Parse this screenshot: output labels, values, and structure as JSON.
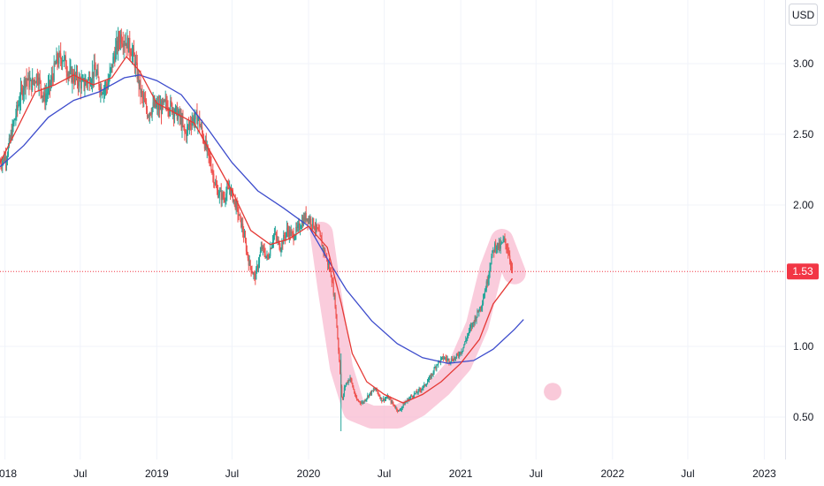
{
  "chart_data": {
    "type": "line",
    "currency": "USD",
    "last_price_label": "1.53",
    "last_price": 1.53,
    "ylim": [
      0.2,
      3.45
    ],
    "y_ticks": [
      {
        "value": 3.0,
        "label": "3.00"
      },
      {
        "value": 2.5,
        "label": "2.50"
      },
      {
        "value": 2.0,
        "label": "2.00"
      },
      {
        "value": 1.0,
        "label": "1.00"
      },
      {
        "value": 0.5,
        "label": "0.50"
      }
    ],
    "xlim": [
      "2017-12-20",
      "2023-02-20"
    ],
    "x_ticks": [
      {
        "date": "2018-01-01",
        "label": "2018"
      },
      {
        "date": "2018-07-01",
        "label": "Jul"
      },
      {
        "date": "2019-01-01",
        "label": "2019"
      },
      {
        "date": "2019-07-01",
        "label": "Jul"
      },
      {
        "date": "2020-01-01",
        "label": "2020"
      },
      {
        "date": "2020-07-01",
        "label": "Jul"
      },
      {
        "date": "2021-01-01",
        "label": "2021"
      },
      {
        "date": "2021-07-01",
        "label": "Jul"
      },
      {
        "date": "2022-01-01",
        "label": "2022"
      },
      {
        "date": "2022-07-01",
        "label": "Jul"
      },
      {
        "date": "2023-01-01",
        "label": "2023"
      }
    ],
    "colors": {
      "up": "#26a69a",
      "down": "#ef5350",
      "fast_ma": "#e53935",
      "slow_ma": "#3d4ccc",
      "highlight": "#f8bbd0",
      "last_price": "#f23645",
      "grid": "#f0f3fa",
      "axis_text": "#131722"
    },
    "price_path": [
      [
        "2017-12-20",
        2.3
      ],
      [
        "2018-01-05",
        2.35
      ],
      [
        "2018-01-20",
        2.55
      ],
      [
        "2018-02-05",
        2.75
      ],
      [
        "2018-02-20",
        2.9
      ],
      [
        "2018-03-05",
        2.85
      ],
      [
        "2018-03-20",
        2.92
      ],
      [
        "2018-04-05",
        2.75
      ],
      [
        "2018-04-20",
        2.85
      ],
      [
        "2018-05-05",
        3.02
      ],
      [
        "2018-05-20",
        3.05
      ],
      [
        "2018-06-05",
        2.92
      ],
      [
        "2018-06-20",
        2.9
      ],
      [
        "2018-07-05",
        2.85
      ],
      [
        "2018-07-20",
        2.88
      ],
      [
        "2018-08-05",
        2.95
      ],
      [
        "2018-08-20",
        2.82
      ],
      [
        "2018-09-05",
        2.85
      ],
      [
        "2018-09-20",
        3.05
      ],
      [
        "2018-10-05",
        3.2
      ],
      [
        "2018-10-20",
        3.15
      ],
      [
        "2018-11-01",
        3.1
      ],
      [
        "2018-11-10",
        3.0
      ],
      [
        "2018-11-25",
        2.78
      ],
      [
        "2018-12-10",
        2.65
      ],
      [
        "2018-12-25",
        2.7
      ],
      [
        "2019-01-10",
        2.68
      ],
      [
        "2019-01-25",
        2.72
      ],
      [
        "2019-02-10",
        2.68
      ],
      [
        "2019-02-25",
        2.62
      ],
      [
        "2019-03-10",
        2.5
      ],
      [
        "2019-03-25",
        2.6
      ],
      [
        "2019-04-10",
        2.62
      ],
      [
        "2019-04-25",
        2.45
      ],
      [
        "2019-05-10",
        2.3
      ],
      [
        "2019-05-25",
        2.1
      ],
      [
        "2019-06-10",
        2.05
      ],
      [
        "2019-06-25",
        2.12
      ],
      [
        "2019-07-10",
        2.0
      ],
      [
        "2019-07-25",
        1.85
      ],
      [
        "2019-08-10",
        1.6
      ],
      [
        "2019-08-25",
        1.48
      ],
      [
        "2019-09-10",
        1.7
      ],
      [
        "2019-09-25",
        1.62
      ],
      [
        "2019-10-10",
        1.8
      ],
      [
        "2019-10-25",
        1.7
      ],
      [
        "2019-11-10",
        1.82
      ],
      [
        "2019-11-25",
        1.78
      ],
      [
        "2019-12-10",
        1.85
      ],
      [
        "2019-12-25",
        1.92
      ],
      [
        "2020-01-10",
        1.88
      ],
      [
        "2020-01-25",
        1.8
      ],
      [
        "2020-02-10",
        1.65
      ],
      [
        "2020-02-25",
        1.5
      ],
      [
        "2020-03-05",
        1.3
      ],
      [
        "2020-03-15",
        0.9
      ],
      [
        "2020-03-22",
        0.6
      ],
      [
        "2020-03-28",
        0.72
      ],
      [
        "2020-04-10",
        0.78
      ],
      [
        "2020-04-25",
        0.62
      ],
      [
        "2020-05-10",
        0.6
      ],
      [
        "2020-05-25",
        0.66
      ],
      [
        "2020-06-10",
        0.7
      ],
      [
        "2020-06-25",
        0.62
      ],
      [
        "2020-07-10",
        0.64
      ],
      [
        "2020-07-25",
        0.58
      ],
      [
        "2020-08-05",
        0.54
      ],
      [
        "2020-08-20",
        0.6
      ],
      [
        "2020-09-05",
        0.65
      ],
      [
        "2020-09-20",
        0.68
      ],
      [
        "2020-10-05",
        0.72
      ],
      [
        "2020-10-20",
        0.78
      ],
      [
        "2020-11-05",
        0.88
      ],
      [
        "2020-11-20",
        0.92
      ],
      [
        "2020-12-05",
        0.9
      ],
      [
        "2020-12-20",
        0.92
      ],
      [
        "2021-01-05",
        0.98
      ],
      [
        "2021-01-20",
        1.1
      ],
      [
        "2021-02-05",
        1.2
      ],
      [
        "2021-02-20",
        1.3
      ],
      [
        "2021-03-05",
        1.45
      ],
      [
        "2021-03-15",
        1.62
      ],
      [
        "2021-03-25",
        1.72
      ],
      [
        "2021-04-05",
        1.7
      ],
      [
        "2021-04-15",
        1.75
      ],
      [
        "2021-04-25",
        1.68
      ],
      [
        "2021-05-05",
        1.53
      ]
    ],
    "fast_ma_path": [
      [
        "2017-12-20",
        2.3
      ],
      [
        "2018-02-01",
        2.55
      ],
      [
        "2018-03-15",
        2.8
      ],
      [
        "2018-05-01",
        2.85
      ],
      [
        "2018-06-15",
        2.92
      ],
      [
        "2018-08-01",
        2.85
      ],
      [
        "2018-09-15",
        2.9
      ],
      [
        "2018-10-20",
        3.05
      ],
      [
        "2018-11-20",
        2.95
      ],
      [
        "2019-01-01",
        2.72
      ],
      [
        "2019-02-15",
        2.65
      ],
      [
        "2019-04-01",
        2.58
      ],
      [
        "2019-05-15",
        2.35
      ],
      [
        "2019-07-01",
        2.1
      ],
      [
        "2019-08-15",
        1.82
      ],
      [
        "2019-10-01",
        1.72
      ],
      [
        "2019-11-15",
        1.76
      ],
      [
        "2020-01-01",
        1.85
      ],
      [
        "2020-02-15",
        1.7
      ],
      [
        "2020-03-20",
        1.3
      ],
      [
        "2020-04-15",
        0.95
      ],
      [
        "2020-05-20",
        0.75
      ],
      [
        "2020-07-01",
        0.66
      ],
      [
        "2020-08-15",
        0.6
      ],
      [
        "2020-10-01",
        0.66
      ],
      [
        "2020-11-15",
        0.75
      ],
      [
        "2021-01-01",
        0.88
      ],
      [
        "2021-02-15",
        1.05
      ],
      [
        "2021-03-20",
        1.3
      ],
      [
        "2021-05-05",
        1.48
      ]
    ],
    "slow_ma_path": [
      [
        "2017-12-20",
        2.27
      ],
      [
        "2018-02-15",
        2.42
      ],
      [
        "2018-04-15",
        2.62
      ],
      [
        "2018-06-15",
        2.74
      ],
      [
        "2018-08-15",
        2.8
      ],
      [
        "2018-10-15",
        2.9
      ],
      [
        "2018-11-20",
        2.92
      ],
      [
        "2019-01-01",
        2.88
      ],
      [
        "2019-03-01",
        2.78
      ],
      [
        "2019-05-01",
        2.55
      ],
      [
        "2019-07-01",
        2.3
      ],
      [
        "2019-09-01",
        2.1
      ],
      [
        "2019-11-01",
        1.98
      ],
      [
        "2020-01-01",
        1.85
      ],
      [
        "2020-02-15",
        1.62
      ],
      [
        "2020-04-01",
        1.4
      ],
      [
        "2020-06-01",
        1.18
      ],
      [
        "2020-08-01",
        1.02
      ],
      [
        "2020-10-01",
        0.92
      ],
      [
        "2020-12-01",
        0.88
      ],
      [
        "2021-02-01",
        0.9
      ],
      [
        "2021-03-20",
        0.98
      ],
      [
        "2021-05-10",
        1.12
      ],
      [
        "2021-06-01",
        1.19
      ]
    ],
    "highlight_path": [
      [
        "2020-02-01",
        1.8
      ],
      [
        "2020-02-20",
        1.4
      ],
      [
        "2020-03-20",
        0.85
      ],
      [
        "2020-04-20",
        0.55
      ],
      [
        "2020-06-01",
        0.5
      ],
      [
        "2020-08-01",
        0.5
      ],
      [
        "2020-09-20",
        0.58
      ],
      [
        "2020-11-15",
        0.72
      ],
      [
        "2021-01-01",
        0.88
      ],
      [
        "2021-02-10",
        1.15
      ],
      [
        "2021-03-15",
        1.55
      ],
      [
        "2021-04-10",
        1.75
      ],
      [
        "2021-05-10",
        1.52
      ]
    ],
    "highlight_dot": [
      "2021-08-10",
      0.68
    ]
  }
}
